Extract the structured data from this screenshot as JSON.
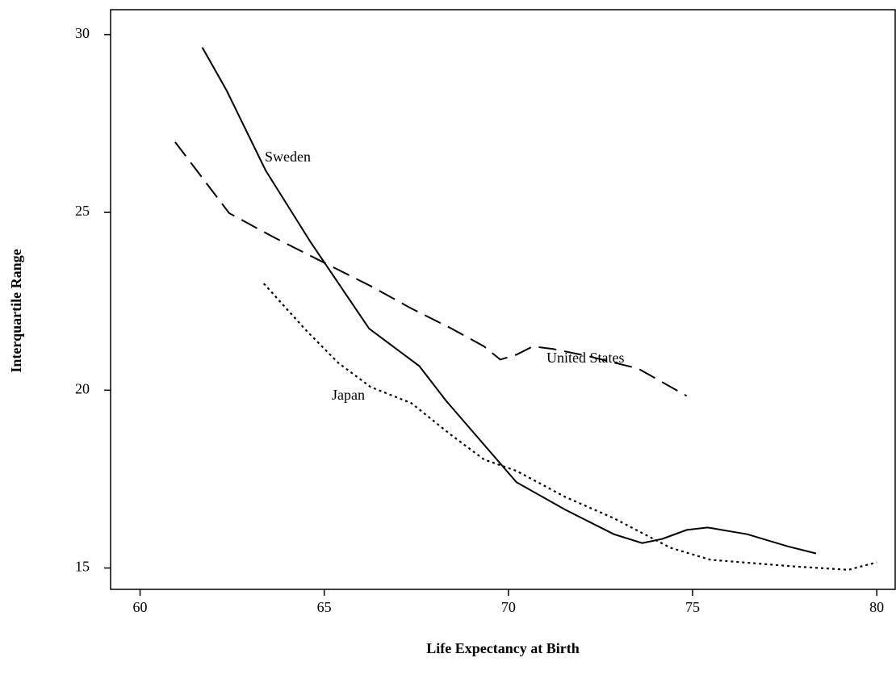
{
  "chart_data": {
    "type": "line",
    "x_label": "Life Expectancy at Birth",
    "y_label": "Interquartile Range",
    "xlim": [
      59.2,
      80.5
    ],
    "ylim": [
      14.4,
      30.7
    ],
    "xticks": [
      60,
      65,
      70,
      75,
      80
    ],
    "yticks": [
      15,
      20,
      25,
      30
    ],
    "annotations": [
      "Sweden",
      "United States",
      "Japan"
    ],
    "series": [
      {
        "name": "Sweden",
        "color": "#000000",
        "style": "solid",
        "x": [
          61.69,
          62.35,
          63.41,
          64.62,
          66.22,
          67.58,
          68.31,
          70.22,
          71.54,
          72.86,
          73.63,
          74.18,
          74.84,
          75.41,
          76.48,
          77.58,
          78.35
        ],
        "values": [
          29.64,
          28.43,
          26.18,
          24.18,
          21.73,
          20.68,
          19.7,
          17.41,
          16.64,
          15.95,
          15.7,
          15.82,
          16.07,
          16.14,
          15.95,
          15.61,
          15.41
        ]
      },
      {
        "name": "United States",
        "color": "#000000",
        "style": "dashed",
        "x": [
          60.95,
          62.42,
          63.63,
          64.95,
          66.26,
          67.36,
          68.46,
          69.34,
          69.78,
          70.22,
          70.66,
          71.21,
          72.2,
          73.52,
          74.84
        ],
        "values": [
          26.98,
          24.98,
          24.3,
          23.61,
          22.93,
          22.3,
          21.73,
          21.23,
          20.86,
          21.0,
          21.23,
          21.16,
          20.95,
          20.61,
          19.84
        ]
      },
      {
        "name": "Japan",
        "color": "#000000",
        "style": "dotted",
        "x": [
          63.36,
          64.51,
          65.38,
          66.26,
          67.36,
          68.46,
          69.34,
          70.22,
          71.54,
          72.86,
          74.4,
          75.49,
          77.69,
          79.23,
          80.0
        ],
        "values": [
          23.0,
          21.68,
          20.77,
          20.09,
          19.64,
          18.73,
          18.05,
          17.73,
          17.0,
          16.4,
          15.57,
          15.23,
          15.05,
          14.95,
          15.16
        ]
      }
    ]
  }
}
